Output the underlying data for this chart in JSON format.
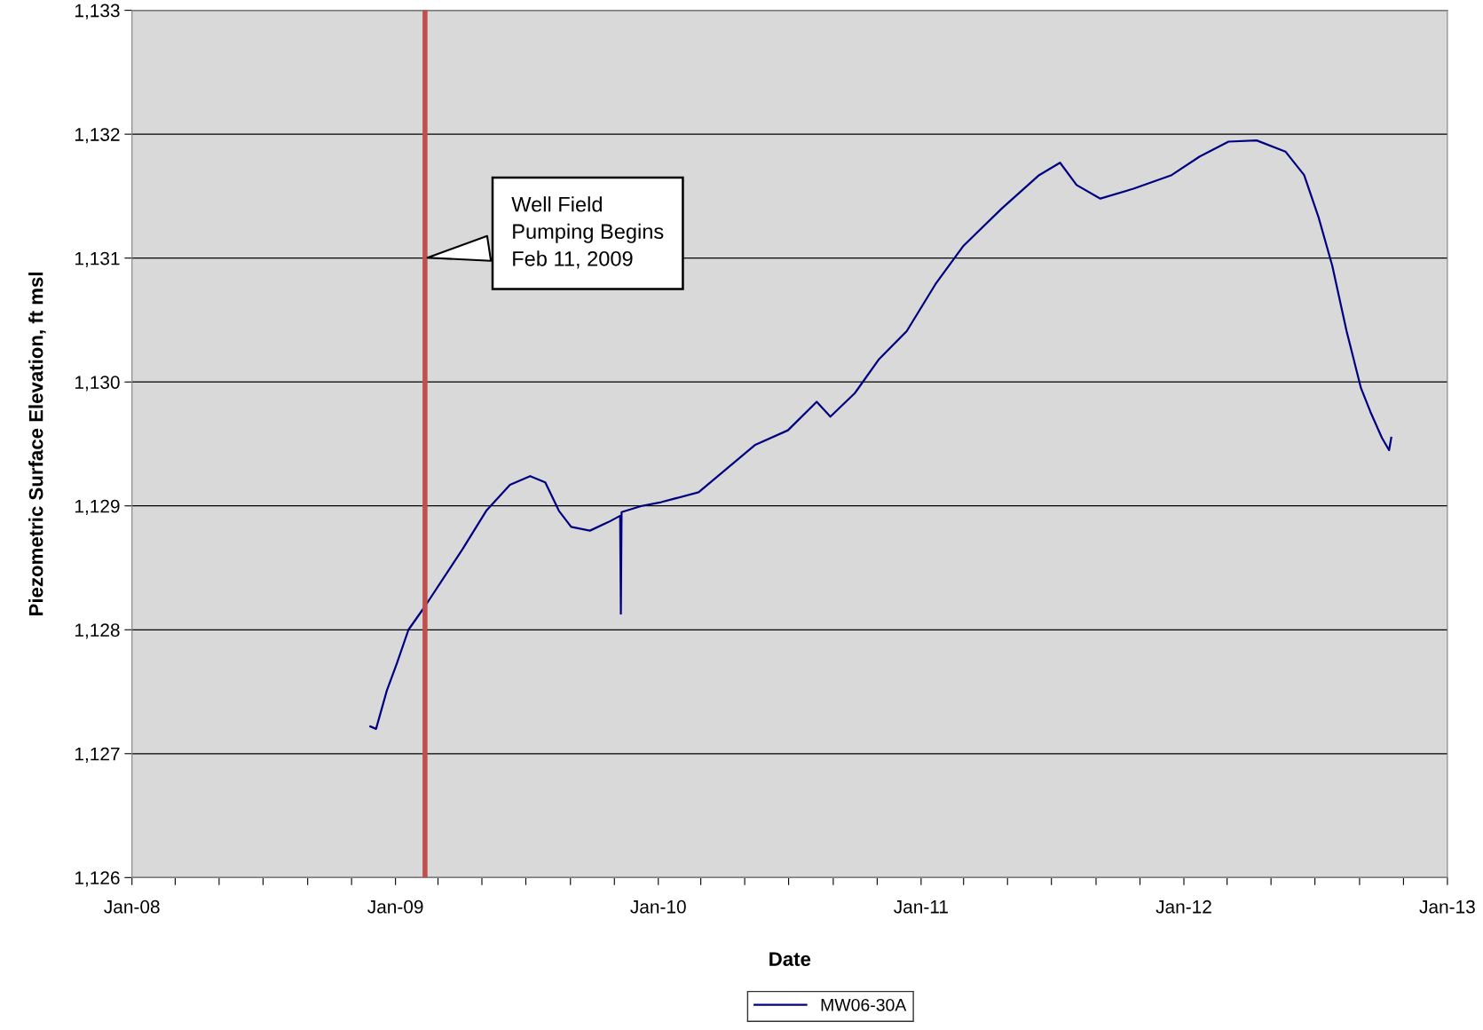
{
  "chart_data": {
    "type": "line",
    "xlabel": "Date",
    "ylabel": "Piezometric Surface Elevation, ft msl",
    "x": [
      "2008-11-27",
      "2008-12-05",
      "2008-12-20",
      "2009-01-03",
      "2009-01-19",
      "2009-02-11",
      "2009-03-09",
      "2009-04-04",
      "2009-05-07",
      "2009-06-09",
      "2009-07-07",
      "2009-07-28",
      "2009-08-16",
      "2009-09-02",
      "2009-09-28",
      "2009-10-24",
      "2009-11-09",
      "2009-11-10",
      "2009-11-11",
      "2009-12-09",
      "2010-01-05",
      "2010-02-26",
      "2010-04-06",
      "2010-05-15",
      "2010-06-30",
      "2010-08-09",
      "2010-08-28",
      "2010-10-01",
      "2010-11-03",
      "2010-12-12",
      "2011-01-21",
      "2011-03-01",
      "2011-04-23",
      "2011-06-14",
      "2011-07-13",
      "2011-08-05",
      "2011-09-07",
      "2011-10-23",
      "2011-12-15",
      "2012-01-23",
      "2012-03-03",
      "2012-04-11",
      "2012-05-21",
      "2012-06-16",
      "2012-07-06",
      "2012-07-25",
      "2012-08-14",
      "2012-09-03",
      "2012-09-16",
      "2012-10-02",
      "2012-10-12",
      "2012-10-15"
    ],
    "series": [
      {
        "name": "MW06-30A",
        "color": "#000080",
        "values": [
          1127.22,
          1127.2,
          1127.51,
          1127.73,
          1128.0,
          1128.19,
          1128.42,
          1128.65,
          1128.96,
          1129.17,
          1129.24,
          1129.19,
          1128.96,
          1128.83,
          1128.8,
          1128.87,
          1128.92,
          1128.13,
          1128.95,
          1129.0,
          1129.03,
          1129.11,
          1129.3,
          1129.49,
          1129.61,
          1129.84,
          1129.72,
          1129.91,
          1130.18,
          1130.41,
          1130.79,
          1131.1,
          1131.4,
          1131.67,
          1131.77,
          1131.59,
          1131.48,
          1131.56,
          1131.67,
          1131.82,
          1131.94,
          1131.95,
          1131.86,
          1131.67,
          1131.33,
          1130.94,
          1130.41,
          1129.95,
          1129.76,
          1129.55,
          1129.45,
          1129.55
        ]
      }
    ],
    "xlim": [
      "2008-01-01",
      "2013-01-01"
    ],
    "xticks": [
      {
        "value": "2008-01-01",
        "label": "Jan-08"
      },
      {
        "value": "2008-03-01",
        "label": null
      },
      {
        "value": "2008-05-01",
        "label": null
      },
      {
        "value": "2008-07-01",
        "label": null
      },
      {
        "value": "2008-09-01",
        "label": null
      },
      {
        "value": "2008-11-01",
        "label": null
      },
      {
        "value": "2009-01-01",
        "label": "Jan-09"
      },
      {
        "value": "2009-03-01",
        "label": null
      },
      {
        "value": "2009-05-01",
        "label": null
      },
      {
        "value": "2009-07-01",
        "label": null
      },
      {
        "value": "2009-09-01",
        "label": null
      },
      {
        "value": "2009-11-01",
        "label": null
      },
      {
        "value": "2010-01-01",
        "label": "Jan-10"
      },
      {
        "value": "2010-03-01",
        "label": null
      },
      {
        "value": "2010-05-01",
        "label": null
      },
      {
        "value": "2010-07-01",
        "label": null
      },
      {
        "value": "2010-09-01",
        "label": null
      },
      {
        "value": "2010-11-01",
        "label": null
      },
      {
        "value": "2011-01-01",
        "label": "Jan-11"
      },
      {
        "value": "2011-03-01",
        "label": null
      },
      {
        "value": "2011-05-01",
        "label": null
      },
      {
        "value": "2011-07-01",
        "label": null
      },
      {
        "value": "2011-09-01",
        "label": null
      },
      {
        "value": "2011-11-01",
        "label": null
      },
      {
        "value": "2012-01-01",
        "label": "Jan-12"
      },
      {
        "value": "2012-03-01",
        "label": null
      },
      {
        "value": "2012-05-01",
        "label": null
      },
      {
        "value": "2012-07-01",
        "label": null
      },
      {
        "value": "2012-09-01",
        "label": null
      },
      {
        "value": "2012-11-01",
        "label": null
      },
      {
        "value": "2013-01-01",
        "label": "Jan-13"
      }
    ],
    "ylim": [
      1126,
      1133
    ],
    "yticks": [
      {
        "value": 1126,
        "label": "1,126"
      },
      {
        "value": 1127,
        "label": "1,127"
      },
      {
        "value": 1128,
        "label": "1,128"
      },
      {
        "value": 1129,
        "label": "1,129"
      },
      {
        "value": 1130,
        "label": "1,130"
      },
      {
        "value": 1131,
        "label": "1,131"
      },
      {
        "value": 1132,
        "label": "1,132"
      },
      {
        "value": 1133,
        "label": "1,133"
      }
    ],
    "ref_lines": [
      {
        "axis": "x",
        "value": "2009-02-11",
        "color": "#c0504d"
      }
    ],
    "annotations": [
      {
        "text": "Well Field\nPumping Begins\nFeb 11, 2009",
        "x": "2009-02-11",
        "y": 1131
      }
    ],
    "grid": "y",
    "legend": "bottom",
    "marker": "none",
    "line_style": "solid"
  }
}
